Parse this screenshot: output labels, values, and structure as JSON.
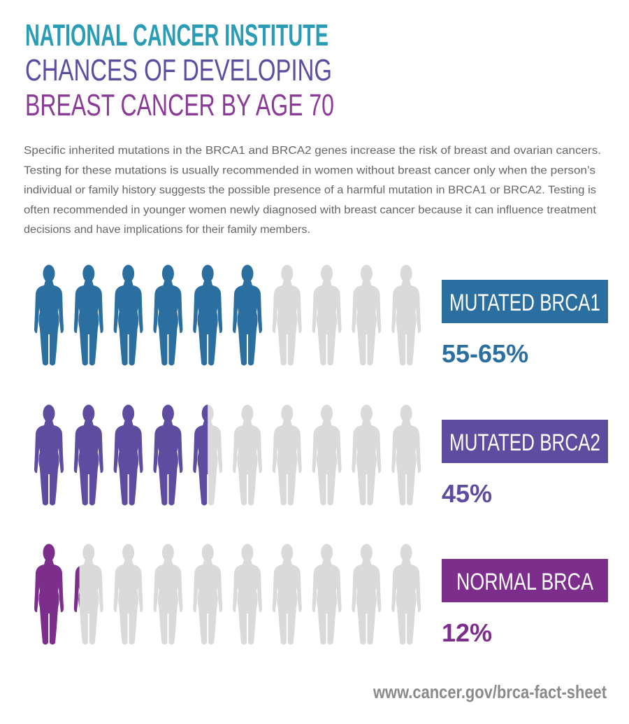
{
  "header": {
    "title_lines": [
      "NATIONAL CANCER INSTITUTE",
      "CHANCES OF DEVELOPING",
      "BREAST CANCER BY AGE 70"
    ],
    "paragraph_lines": [
      "Specific inherited mutations in the BRCA1 and BRCA2 genes increase the risk of breast and ovarian cancers.",
      "Testing for these mutations is usually recommended in women without breast cancer only when the person’s",
      "individual or family history suggests the possible presence of a harmful mutation in BRCA1 or BRCA2. Testing is",
      "often recommended in younger women newly diagnosed with breast cancer because it can influence treatment",
      "decisions and have implications for their family members."
    ]
  },
  "chart_data": {
    "type": "pictogram",
    "categories": [
      "MUTATED BRCA1",
      "MUTATED BRCA2",
      "NORMAL BRCA"
    ],
    "values": [
      60,
      45,
      12
    ],
    "value_labels": [
      "55-65%",
      "45%",
      "12%"
    ],
    "colors": [
      "#2b6fa1",
      "#5d4c9f",
      "#7d2d8c"
    ],
    "empty_color": "#dadada",
    "xlim": [
      0,
      100
    ]
  },
  "footer": {
    "url": "www.cancer.gov/brca-fact-sheet"
  }
}
